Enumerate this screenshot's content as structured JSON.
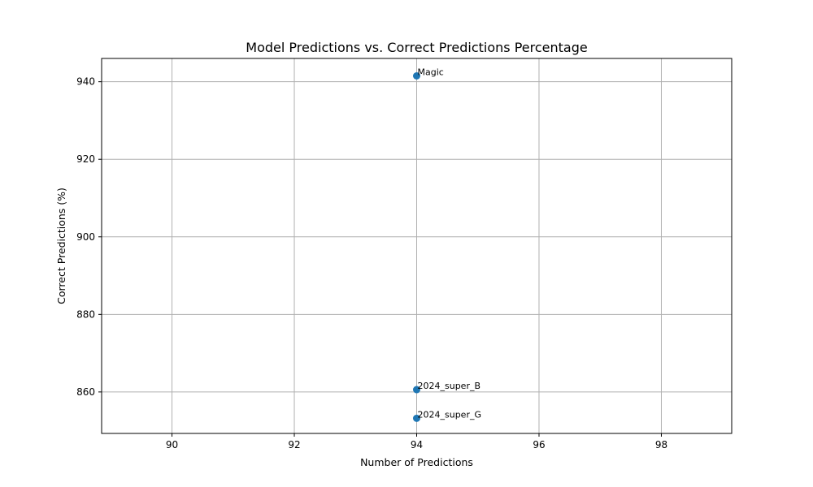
{
  "chart_data": {
    "type": "scatter",
    "title": "Model Predictions vs. Correct Predictions Percentage",
    "xlabel": "Number of Predictions",
    "ylabel": "Correct Predictions (%)",
    "xlim": [
      88.85,
      99.15
    ],
    "ylim": [
      849.3,
      946.0
    ],
    "xticks": [
      90,
      92,
      94,
      96,
      98
    ],
    "yticks": [
      860,
      880,
      900,
      920,
      940
    ],
    "grid": true,
    "marker_color": "#1f77b4",
    "points": [
      {
        "label": "Magic",
        "x": 94,
        "y": 941.5
      },
      {
        "label": "2024_super_B",
        "x": 94,
        "y": 860.6
      },
      {
        "label": "2024_super_G",
        "x": 94,
        "y": 853.2
      }
    ]
  }
}
